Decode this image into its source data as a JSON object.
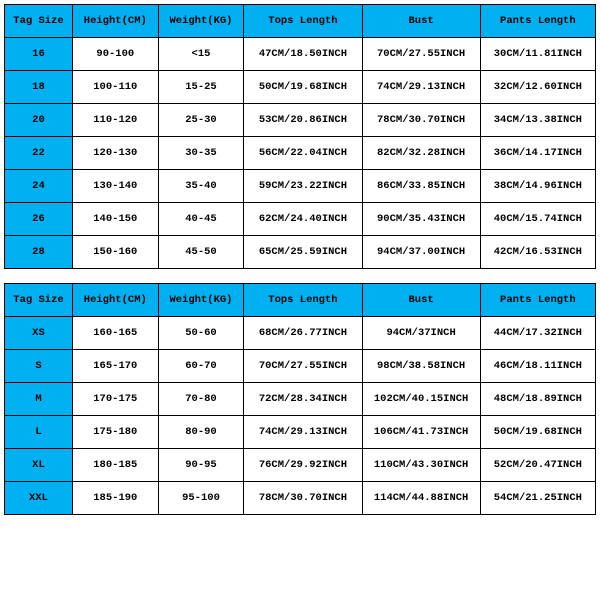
{
  "tables": [
    {
      "columns": [
        "Tag Size",
        "Height(CM)",
        "Weight(KG)",
        "Tops Length",
        "Bust",
        "Pants Length"
      ],
      "header_bg": "#00b0f0",
      "tag_bg": "#00b0f0",
      "border_color": "#000000",
      "font_family": "Courier New",
      "font_size_pt": 8,
      "rows": [
        [
          "16",
          "90-100",
          "<15",
          "47CM/18.50INCH",
          "70CM/27.55INCH",
          "30CM/11.81INCH"
        ],
        [
          "18",
          "100-110",
          "15-25",
          "50CM/19.68INCH",
          "74CM/29.13INCH",
          "32CM/12.60INCH"
        ],
        [
          "20",
          "110-120",
          "25-30",
          "53CM/20.86INCH",
          "78CM/30.70INCH",
          "34CM/13.38INCH"
        ],
        [
          "22",
          "120-130",
          "30-35",
          "56CM/22.04INCH",
          "82CM/32.28INCH",
          "36CM/14.17INCH"
        ],
        [
          "24",
          "130-140",
          "35-40",
          "59CM/23.22INCH",
          "86CM/33.85INCH",
          "38CM/14.96INCH"
        ],
        [
          "26",
          "140-150",
          "40-45",
          "62CM/24.40INCH",
          "90CM/35.43INCH",
          "40CM/15.74INCH"
        ],
        [
          "28",
          "150-160",
          "45-50",
          "65CM/25.59INCH",
          "94CM/37.00INCH",
          "42CM/16.53INCH"
        ]
      ]
    },
    {
      "columns": [
        "Tag Size",
        "Height(CM)",
        "Weight(KG)",
        "Tops Length",
        "Bust",
        "Pants Length"
      ],
      "header_bg": "#00b0f0",
      "tag_bg": "#00b0f0",
      "border_color": "#000000",
      "font_family": "Courier New",
      "font_size_pt": 8,
      "rows": [
        [
          "XS",
          "160-165",
          "50-60",
          "68CM/26.77INCH",
          "94CM/37INCH",
          "44CM/17.32INCH"
        ],
        [
          "S",
          "165-170",
          "60-70",
          "70CM/27.55INCH",
          "98CM/38.58INCH",
          "46CM/18.11INCH"
        ],
        [
          "M",
          "170-175",
          "70-80",
          "72CM/28.34INCH",
          "102CM/40.15INCH",
          "48CM/18.89INCH"
        ],
        [
          "L",
          "175-180",
          "80-90",
          "74CM/29.13INCH",
          "106CM/41.73INCH",
          "50CM/19.68INCH"
        ],
        [
          "XL",
          "180-185",
          "90-95",
          "76CM/29.92INCH",
          "110CM/43.30INCH",
          "52CM/20.47INCH"
        ],
        [
          "XXL",
          "185-190",
          "95-100",
          "78CM/30.70INCH",
          "114CM/44.88INCH",
          "54CM/21.25INCH"
        ]
      ]
    }
  ]
}
